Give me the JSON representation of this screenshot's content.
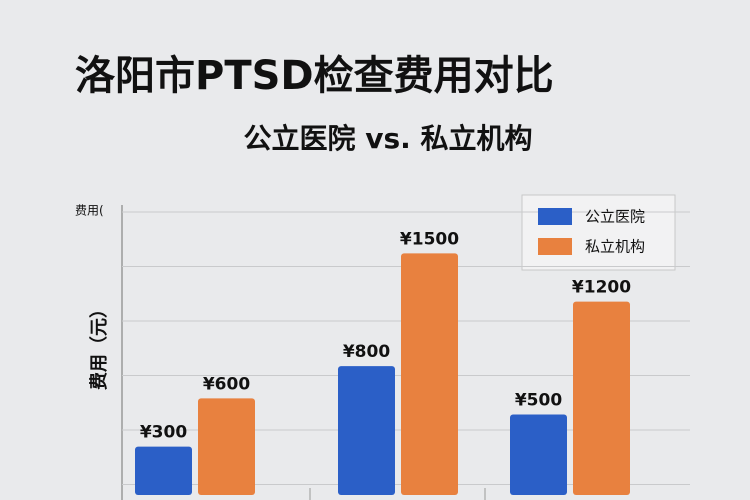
{
  "chart_data": {
    "type": "bar",
    "title": "洛阳市PTSD检查费用对比",
    "subtitle": "公立医院 vs. 私立机构",
    "y_label": "费用（元）",
    "y_label_top": "费用(",
    "categories": [
      null,
      null,
      null
    ],
    "series": [
      {
        "name": "公立医院",
        "color": "#2b5fc7",
        "values": [
          300,
          800,
          500
        ],
        "value_labels": [
          "¥300",
          "¥800",
          "¥500"
        ]
      },
      {
        "name": "私立机构",
        "color": "#e8813f",
        "values": [
          600,
          1500,
          1200
        ],
        "value_labels": [
          "¥600",
          "¥1500",
          "¥1200"
        ]
      }
    ],
    "ylim": [
      0,
      1800
    ],
    "grid": true,
    "legend": "upper right"
  }
}
